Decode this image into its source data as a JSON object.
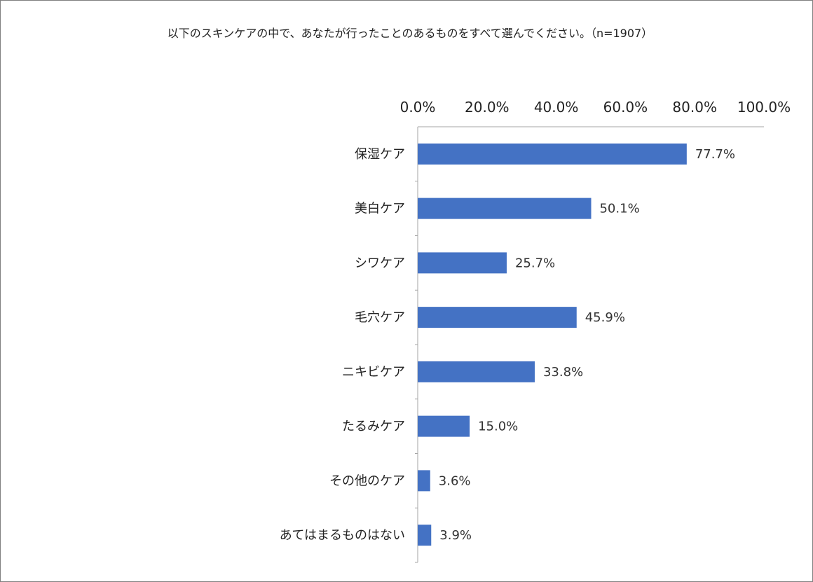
{
  "chart_data": {
    "type": "bar",
    "orientation": "horizontal",
    "title": "以下のスキンケアの中で、あなたが行ったことのあるものをすべて選んでください。（n=1907）",
    "categories": [
      "保湿ケア",
      "美白ケア",
      "シワケア",
      "毛穴ケア",
      "ニキビケア",
      "たるみケア",
      "その他のケア",
      "あてはまるものはない"
    ],
    "values": [
      77.7,
      50.1,
      25.7,
      45.9,
      33.8,
      15.0,
      3.6,
      3.9
    ],
    "data_labels": [
      "77.7%",
      "50.1%",
      "25.7%",
      "45.9%",
      "33.8%",
      "15.0%",
      "3.6%",
      "3.9%"
    ],
    "x_ticks": [
      "0.0%",
      "20.0%",
      "40.0%",
      "60.0%",
      "80.0%",
      "100.0%"
    ],
    "xlim": [
      0,
      100
    ],
    "x_axis_position": "top",
    "grid": false,
    "legend": "none",
    "bar_color": "#4472c4",
    "axis_color": "#a6a6a6"
  }
}
